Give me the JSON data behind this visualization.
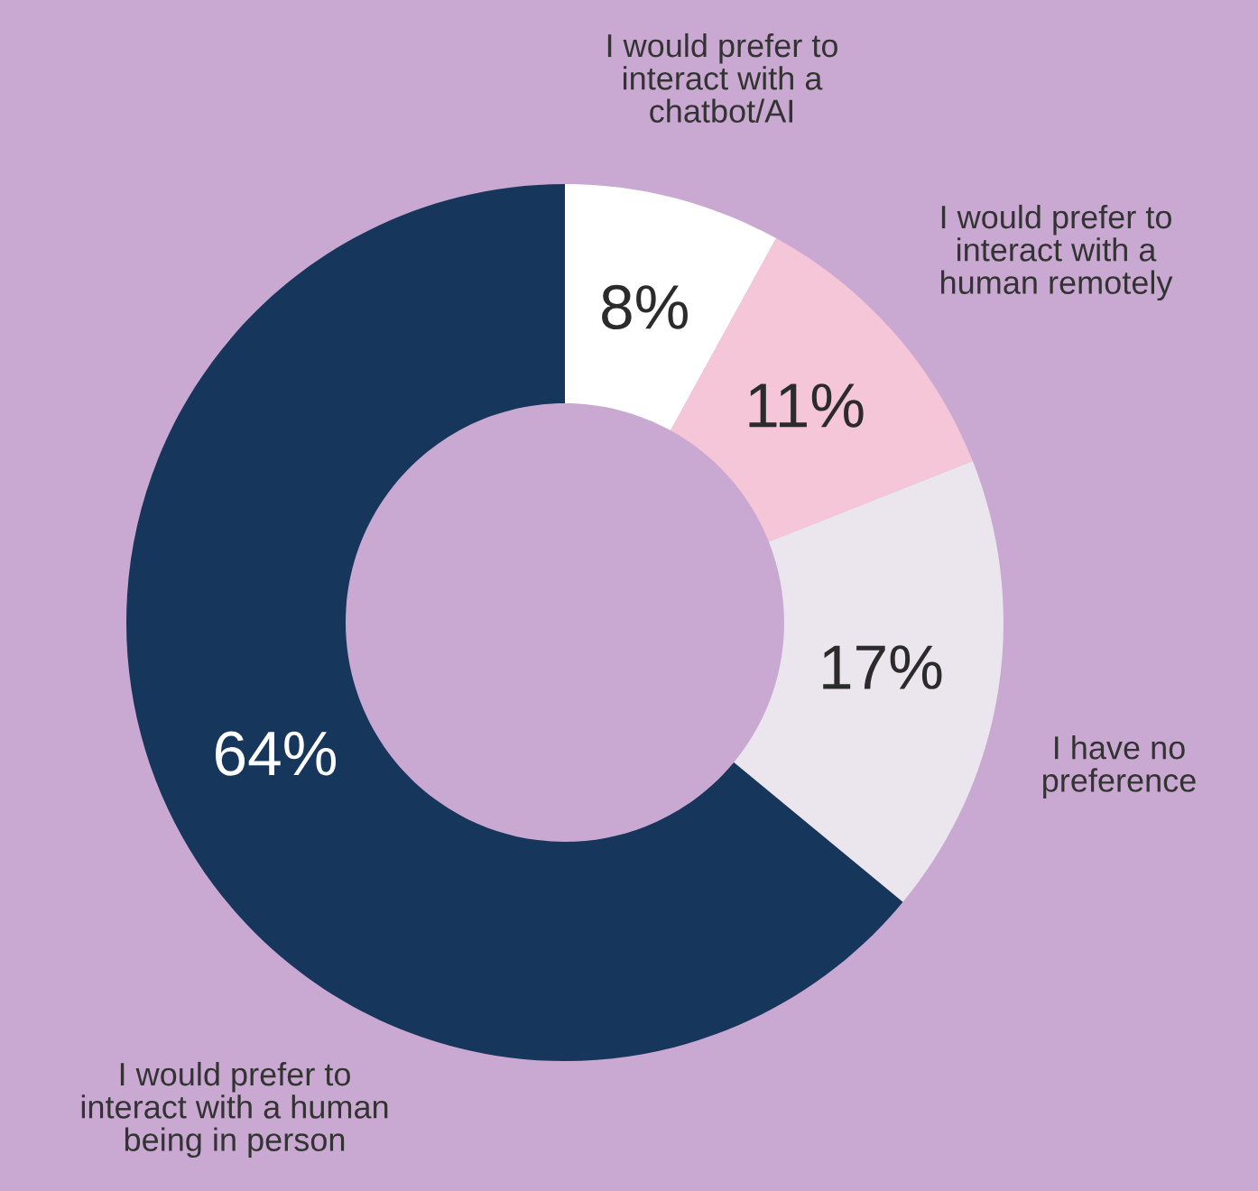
{
  "chart_data": {
    "type": "donut",
    "categories": [
      "I would prefer to interact with a chatbot/AI",
      "I would prefer to interact with a human remotely",
      "I have no preference",
      "I would prefer to interact with a human being in person"
    ],
    "values": [
      8,
      11,
      17,
      64
    ],
    "colors": [
      "#ffffff",
      "#f5c5d8",
      "#ebe6ed",
      "#17365c"
    ],
    "value_labels": [
      "8%",
      "11%",
      "17%",
      "64%"
    ],
    "legend": false
  }
}
